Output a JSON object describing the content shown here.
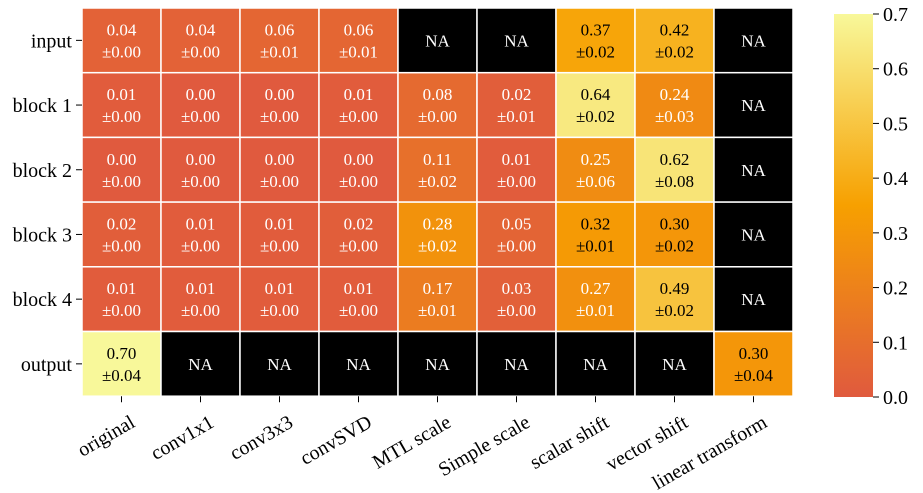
{
  "chart_data": {
    "type": "heatmap",
    "x_labels": [
      "original",
      "conv1x1",
      "conv3x3",
      "convSVD",
      "MTL scale",
      "Simple scale",
      "scalar shift",
      "vector shift",
      "linear transform"
    ],
    "y_labels": [
      "input",
      "block 1",
      "block 2",
      "block 3",
      "block 4",
      "output"
    ],
    "cells": [
      [
        [
          "0.04",
          "±0.00"
        ],
        [
          "0.04",
          "±0.00"
        ],
        [
          "0.06",
          "±0.01"
        ],
        [
          "0.06",
          "±0.01"
        ],
        [
          "NA"
        ],
        [
          "NA"
        ],
        [
          "0.37",
          "±0.02"
        ],
        [
          "0.42",
          "±0.02"
        ],
        [
          "NA"
        ]
      ],
      [
        [
          "0.01",
          "±0.00"
        ],
        [
          "0.00",
          "±0.00"
        ],
        [
          "0.00",
          "±0.00"
        ],
        [
          "0.01",
          "±0.00"
        ],
        [
          "0.08",
          "±0.00"
        ],
        [
          "0.02",
          "±0.01"
        ],
        [
          "0.64",
          "±0.02"
        ],
        [
          "0.24",
          "±0.03"
        ],
        [
          "NA"
        ]
      ],
      [
        [
          "0.00",
          "±0.00"
        ],
        [
          "0.00",
          "±0.00"
        ],
        [
          "0.00",
          "±0.00"
        ],
        [
          "0.00",
          "±0.00"
        ],
        [
          "0.11",
          "±0.02"
        ],
        [
          "0.01",
          "±0.00"
        ],
        [
          "0.25",
          "±0.06"
        ],
        [
          "0.62",
          "±0.08"
        ],
        [
          "NA"
        ]
      ],
      [
        [
          "0.02",
          "±0.00"
        ],
        [
          "0.01",
          "±0.00"
        ],
        [
          "0.01",
          "±0.00"
        ],
        [
          "0.02",
          "±0.00"
        ],
        [
          "0.28",
          "±0.02"
        ],
        [
          "0.05",
          "±0.00"
        ],
        [
          "0.32",
          "±0.01"
        ],
        [
          "0.30",
          "±0.02"
        ],
        [
          "NA"
        ]
      ],
      [
        [
          "0.01",
          "±0.00"
        ],
        [
          "0.01",
          "±0.00"
        ],
        [
          "0.01",
          "±0.00"
        ],
        [
          "0.01",
          "±0.00"
        ],
        [
          "0.17",
          "±0.01"
        ],
        [
          "0.03",
          "±0.00"
        ],
        [
          "0.27",
          "±0.01"
        ],
        [
          "0.49",
          "±0.02"
        ],
        [
          "NA"
        ]
      ],
      [
        [
          "0.70",
          "±0.04"
        ],
        [
          "NA"
        ],
        [
          "NA"
        ],
        [
          "NA"
        ],
        [
          "NA"
        ],
        [
          "NA"
        ],
        [
          "NA"
        ],
        [
          "NA"
        ],
        [
          "0.30",
          "±0.04"
        ]
      ]
    ],
    "colorbar": {
      "range": [
        0.0,
        0.7
      ],
      "ticks": [
        "0.0",
        "0.1",
        "0.2",
        "0.3",
        "0.4",
        "0.5",
        "0.6",
        "0.7"
      ],
      "colors": [
        "#e05a3e",
        "#f7a000",
        "#f8f89a"
      ]
    },
    "na_color": "#000000",
    "grid_line_color": "#ffffff"
  }
}
